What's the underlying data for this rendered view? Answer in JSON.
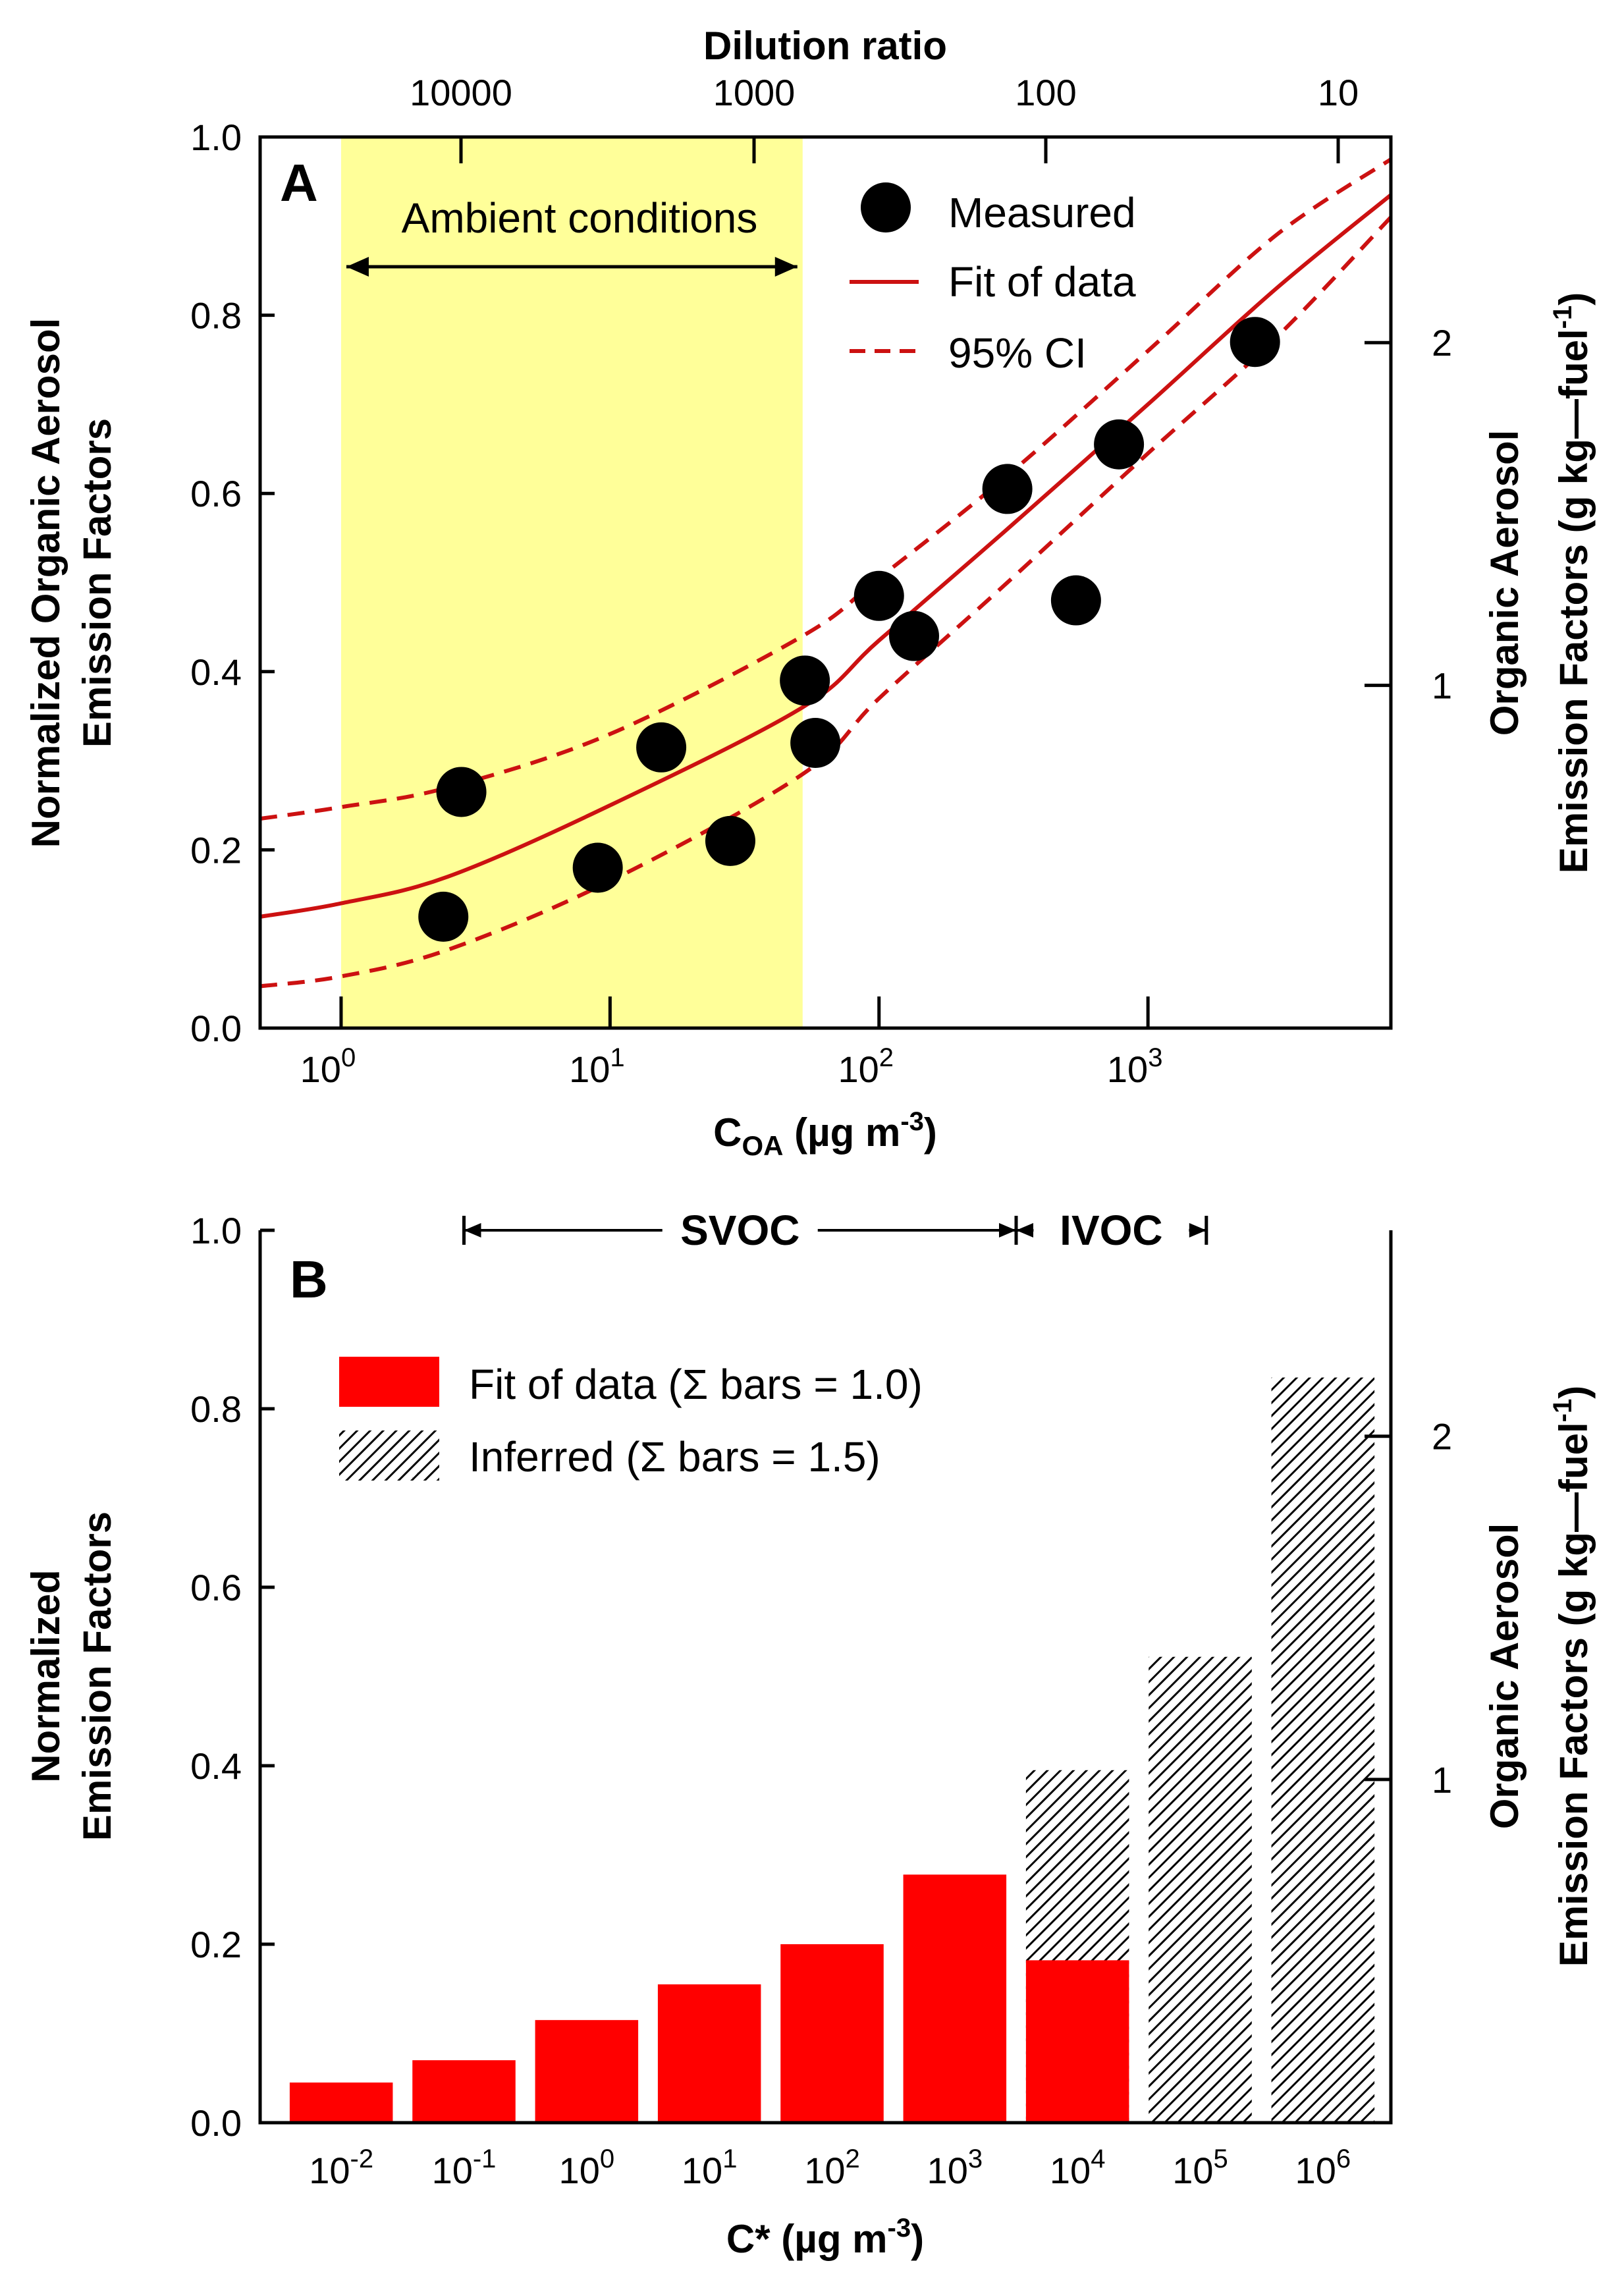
{
  "colors": {
    "ambient_band": "#ffff99",
    "fit_line": "#cc1111",
    "bar_fit": "#ff0000",
    "points": "#000000"
  },
  "panel_a": {
    "panel_label": "A",
    "top_axis_title": "Dilution ratio",
    "top_ticks": [
      {
        "label": "10000",
        "value": 10000
      },
      {
        "label": "1000",
        "value": 1000
      },
      {
        "label": "100",
        "value": 100
      },
      {
        "label": "10",
        "value": 10
      }
    ],
    "left_axis_title_line1": "Normalized Organic Aerosol",
    "left_axis_title_line2": "Emission Factors",
    "right_axis_title_line1": "Organic Aerosol",
    "right_axis_title_line2": "Emission Factors (g kg—fuel",
    "right_axis_title_sup": "-1",
    "right_axis_title_end": ")",
    "x_axis_title": "C",
    "x_axis_title_sub": "OA",
    "x_axis_title_rest": " (µg m",
    "x_axis_title_sup": "-3",
    "x_axis_title_end": ")",
    "ambient_label": "Ambient conditions",
    "legend": {
      "measured": "Measured",
      "fit": "Fit of data",
      "ci": "95% CI"
    }
  },
  "panel_b": {
    "panel_label": "B",
    "left_axis_title_line1": "Normalized",
    "left_axis_title_line2": "Emission Factors",
    "right_axis_title_line1": "Organic Aerosol",
    "right_axis_title_line2": "Emission Factors (g kg—fuel",
    "right_axis_title_sup": "-1",
    "right_axis_title_end": ")",
    "x_axis_title": "C* (µg m",
    "x_axis_title_sup": "-3",
    "x_axis_title_end": ")",
    "svoc_label": "SVOC",
    "ivoc_label": "IVOC",
    "legend": {
      "fit": "Fit of data (Σ bars = 1.0)",
      "inferred": "Inferred (Σ bars = 1.5)"
    }
  },
  "chart_data": [
    {
      "type": "scatter",
      "title": "A",
      "xlabel": "C_OA (µg m^-3)",
      "ylabel": "Normalized Organic Aerosol Emission Factors",
      "y2label": "Organic Aerosol Emission Factors (g kg—fuel^-1)",
      "xscale": "log",
      "xlim": [
        0.5,
        8000
      ],
      "ylim": [
        0,
        1.0
      ],
      "y2_scale_factor": 2.6,
      "x_ticks": [
        {
          "value": 1,
          "base": "10",
          "exp": "0"
        },
        {
          "value": 10,
          "base": "10",
          "exp": "1"
        },
        {
          "value": 100,
          "base": "10",
          "exp": "2"
        },
        {
          "value": 1000,
          "base": "10",
          "exp": "3"
        }
      ],
      "y_ticks": [
        "0.0",
        "0.2",
        "0.4",
        "0.6",
        "0.8",
        "1.0"
      ],
      "y2_ticks": [
        {
          "label": "1",
          "value": 1
        },
        {
          "label": "2",
          "value": 2
        }
      ],
      "top_axis": {
        "label": "Dilution ratio",
        "ticks": [
          10000,
          1000,
          100,
          10
        ]
      },
      "ambient_range": [
        1,
        52
      ],
      "measured": {
        "x": [
          2.4,
          2.8,
          9,
          15.5,
          28,
          53,
          58,
          100,
          135,
          300,
          540,
          780,
          2500
        ],
        "y": [
          0.125,
          0.265,
          0.18,
          0.315,
          0.21,
          0.39,
          0.32,
          0.485,
          0.44,
          0.605,
          0.48,
          0.655,
          0.77
        ]
      },
      "fit": {
        "x": [
          0.5,
          1,
          2.5,
          10,
          52,
          100,
          300,
          1000,
          3000,
          8000
        ],
        "y": [
          0.125,
          0.14,
          0.17,
          0.25,
          0.36,
          0.435,
          0.56,
          0.7,
          0.83,
          0.935
        ]
      },
      "ci_upper": {
        "x": [
          0.5,
          1,
          2.5,
          10,
          52,
          100,
          300,
          1000,
          3000,
          8000
        ],
        "y": [
          0.235,
          0.248,
          0.27,
          0.33,
          0.44,
          0.505,
          0.62,
          0.76,
          0.89,
          0.975
        ]
      },
      "ci_lower": {
        "x": [
          0.5,
          1,
          2.5,
          10,
          52,
          100,
          300,
          1000,
          3000,
          8000
        ],
        "y": [
          0.047,
          0.058,
          0.088,
          0.165,
          0.285,
          0.37,
          0.5,
          0.645,
          0.775,
          0.91
        ]
      },
      "legend": [
        "Measured",
        "Fit of data",
        "95% CI"
      ]
    },
    {
      "type": "bar",
      "title": "B",
      "xlabel": "C* (µg m^-3)",
      "ylabel": "Normalized Emission Factors",
      "y2label": "Organic Aerosol Emission Factors (g kg—fuel^-1)",
      "ylim": [
        0,
        1.0
      ],
      "y2_scale_factor": 2.6,
      "y_ticks": [
        "0.0",
        "0.2",
        "0.4",
        "0.6",
        "0.8",
        "1.0"
      ],
      "y2_ticks": [
        {
          "label": "1",
          "value": 1
        },
        {
          "label": "2",
          "value": 2
        }
      ],
      "categories": [
        {
          "base": "10",
          "exp": "-2"
        },
        {
          "base": "10",
          "exp": "-1"
        },
        {
          "base": "10",
          "exp": "0"
        },
        {
          "base": "10",
          "exp": "1"
        },
        {
          "base": "10",
          "exp": "2"
        },
        {
          "base": "10",
          "exp": "3"
        },
        {
          "base": "10",
          "exp": "4"
        },
        {
          "base": "10",
          "exp": "5"
        },
        {
          "base": "10",
          "exp": "6"
        }
      ],
      "series": [
        {
          "name": "Fit of data (Σ bars = 1.0)",
          "values": [
            0.045,
            0.07,
            0.115,
            0.155,
            0.2,
            0.278,
            0.182,
            null,
            null
          ]
        },
        {
          "name": "Inferred (Σ bars = 1.5)",
          "values": [
            null,
            null,
            null,
            null,
            null,
            null,
            0.395,
            0.522,
            0.835
          ]
        }
      ],
      "regions": [
        {
          "label": "SVOC",
          "from_index": 1,
          "to_index": 5
        },
        {
          "label": "IVOC",
          "from_index": 5,
          "to_index": 8
        }
      ],
      "legend": [
        "Fit of data (Σ bars = 1.0)",
        "Inferred (Σ bars = 1.5)"
      ]
    }
  ]
}
